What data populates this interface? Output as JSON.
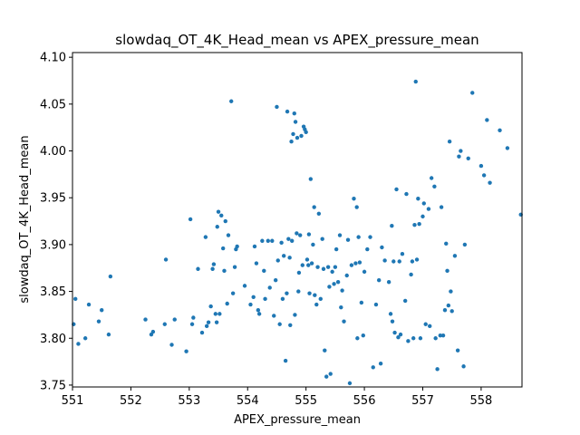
{
  "chart_data": {
    "type": "scatter",
    "title": "slowdaq_OT_4K_Head_mean vs APEX_pressure_mean",
    "xlabel": "APEX_pressure_mean",
    "ylabel": "slowdaq_OT_4K_Head_mean",
    "xlim": [
      551.0,
      558.7
    ],
    "ylim": [
      3.748,
      4.105
    ],
    "xticks": [
      "551",
      "552",
      "553",
      "554",
      "555",
      "556",
      "557",
      "558"
    ],
    "yticks": [
      "3.75",
      "3.80",
      "3.85",
      "3.90",
      "3.95",
      "4.00",
      "4.05",
      "4.10"
    ],
    "marker_color": "#1f77b4",
    "grid": false,
    "points": [
      [
        551.02,
        3.815
      ],
      [
        551.05,
        3.842
      ],
      [
        551.1,
        3.794
      ],
      [
        551.22,
        3.8
      ],
      [
        551.28,
        3.836
      ],
      [
        551.45,
        3.818
      ],
      [
        551.5,
        3.83
      ],
      [
        551.62,
        3.804
      ],
      [
        551.65,
        3.866
      ],
      [
        552.25,
        3.82
      ],
      [
        552.35,
        3.804
      ],
      [
        552.38,
        3.807
      ],
      [
        552.58,
        3.815
      ],
      [
        552.6,
        3.884
      ],
      [
        552.7,
        3.793
      ],
      [
        552.75,
        3.82
      ],
      [
        552.95,
        3.786
      ],
      [
        553.02,
        3.927
      ],
      [
        553.05,
        3.815
      ],
      [
        553.07,
        3.822
      ],
      [
        553.15,
        3.874
      ],
      [
        553.22,
        3.806
      ],
      [
        553.28,
        3.908
      ],
      [
        553.3,
        3.813
      ],
      [
        553.33,
        3.817
      ],
      [
        553.37,
        3.834
      ],
      [
        553.4,
        3.874
      ],
      [
        553.42,
        3.879
      ],
      [
        553.45,
        3.826
      ],
      [
        553.47,
        3.817
      ],
      [
        553.48,
        3.919
      ],
      [
        553.5,
        3.935
      ],
      [
        553.52,
        3.826
      ],
      [
        553.55,
        3.931
      ],
      [
        553.58,
        3.896
      ],
      [
        553.6,
        3.872
      ],
      [
        553.62,
        3.925
      ],
      [
        553.65,
        3.837
      ],
      [
        553.67,
        3.91
      ],
      [
        553.72,
        4.053
      ],
      [
        553.75,
        3.848
      ],
      [
        553.78,
        3.876
      ],
      [
        553.8,
        3.895
      ],
      [
        553.82,
        3.898
      ],
      [
        553.95,
        3.856
      ],
      [
        554.05,
        3.836
      ],
      [
        554.1,
        3.844
      ],
      [
        554.12,
        3.898
      ],
      [
        554.15,
        3.88
      ],
      [
        554.18,
        3.83
      ],
      [
        554.2,
        3.826
      ],
      [
        554.25,
        3.904
      ],
      [
        554.28,
        3.872
      ],
      [
        554.3,
        3.842
      ],
      [
        554.35,
        3.904
      ],
      [
        554.38,
        3.854
      ],
      [
        554.42,
        3.904
      ],
      [
        554.45,
        3.824
      ],
      [
        554.48,
        3.862
      ],
      [
        554.5,
        4.047
      ],
      [
        554.52,
        3.883
      ],
      [
        554.55,
        3.815
      ],
      [
        554.58,
        3.902
      ],
      [
        554.6,
        3.842
      ],
      [
        554.62,
        3.888
      ],
      [
        554.65,
        3.776
      ],
      [
        554.67,
        3.848
      ],
      [
        554.68,
        4.042
      ],
      [
        554.7,
        3.906
      ],
      [
        554.72,
        3.886
      ],
      [
        554.73,
        3.814
      ],
      [
        554.75,
        4.01
      ],
      [
        554.76,
        3.904
      ],
      [
        554.78,
        4.018
      ],
      [
        554.8,
        4.04
      ],
      [
        554.81,
        3.825
      ],
      [
        554.82,
        4.031
      ],
      [
        554.84,
        3.912
      ],
      [
        554.85,
        4.014
      ],
      [
        554.87,
        3.85
      ],
      [
        554.88,
        3.87
      ],
      [
        554.9,
        3.91
      ],
      [
        554.92,
        4.016
      ],
      [
        554.94,
        3.878
      ],
      [
        554.96,
        4.026
      ],
      [
        554.98,
        4.023
      ],
      [
        555.0,
        4.02
      ],
      [
        555.02,
        3.884
      ],
      [
        555.04,
        3.878
      ],
      [
        555.05,
        3.911
      ],
      [
        555.06,
        3.848
      ],
      [
        555.08,
        3.97
      ],
      [
        555.1,
        3.88
      ],
      [
        555.12,
        3.9
      ],
      [
        555.14,
        3.94
      ],
      [
        555.15,
        3.846
      ],
      [
        555.18,
        3.836
      ],
      [
        555.2,
        3.876
      ],
      [
        555.22,
        3.933
      ],
      [
        555.25,
        3.842
      ],
      [
        555.28,
        3.906
      ],
      [
        555.3,
        3.874
      ],
      [
        555.32,
        3.787
      ],
      [
        555.35,
        3.759
      ],
      [
        555.38,
        3.876
      ],
      [
        555.4,
        3.855
      ],
      [
        555.42,
        3.762
      ],
      [
        555.45,
        3.871
      ],
      [
        555.48,
        3.858
      ],
      [
        555.5,
        3.876
      ],
      [
        555.52,
        3.895
      ],
      [
        555.55,
        3.86
      ],
      [
        555.58,
        3.91
      ],
      [
        555.6,
        3.833
      ],
      [
        555.62,
        3.851
      ],
      [
        555.65,
        3.818
      ],
      [
        555.7,
        3.867
      ],
      [
        555.72,
        3.905
      ],
      [
        555.75,
        3.752
      ],
      [
        555.78,
        3.878
      ],
      [
        555.82,
        3.949
      ],
      [
        555.85,
        3.88
      ],
      [
        555.87,
        3.94
      ],
      [
        555.88,
        3.8
      ],
      [
        555.9,
        3.908
      ],
      [
        555.92,
        3.881
      ],
      [
        555.95,
        3.838
      ],
      [
        555.98,
        3.803
      ],
      [
        556.0,
        3.871
      ],
      [
        556.05,
        3.895
      ],
      [
        556.1,
        3.908
      ],
      [
        556.15,
        3.769
      ],
      [
        556.2,
        3.836
      ],
      [
        556.25,
        3.862
      ],
      [
        556.28,
        3.773
      ],
      [
        556.3,
        3.897
      ],
      [
        556.35,
        3.883
      ],
      [
        556.42,
        3.86
      ],
      [
        556.45,
        3.826
      ],
      [
        556.47,
        3.92
      ],
      [
        556.48,
        3.818
      ],
      [
        556.5,
        3.882
      ],
      [
        556.52,
        3.806
      ],
      [
        556.55,
        3.959
      ],
      [
        556.58,
        3.801
      ],
      [
        556.6,
        3.882
      ],
      [
        556.62,
        3.804
      ],
      [
        556.65,
        3.89
      ],
      [
        556.7,
        3.84
      ],
      [
        556.72,
        3.954
      ],
      [
        556.75,
        3.797
      ],
      [
        556.8,
        3.868
      ],
      [
        556.82,
        3.882
      ],
      [
        556.84,
        3.8
      ],
      [
        556.86,
        3.921
      ],
      [
        556.88,
        4.074
      ],
      [
        556.9,
        3.884
      ],
      [
        556.92,
        3.949
      ],
      [
        556.94,
        3.922
      ],
      [
        556.96,
        3.8
      ],
      [
        557.0,
        3.93
      ],
      [
        557.02,
        3.944
      ],
      [
        557.05,
        3.815
      ],
      [
        557.1,
        3.938
      ],
      [
        557.12,
        3.813
      ],
      [
        557.15,
        3.971
      ],
      [
        557.2,
        3.962
      ],
      [
        557.22,
        3.8
      ],
      [
        557.25,
        3.767
      ],
      [
        557.3,
        3.803
      ],
      [
        557.32,
        3.94
      ],
      [
        557.35,
        3.803
      ],
      [
        557.38,
        3.83
      ],
      [
        557.4,
        3.901
      ],
      [
        557.42,
        3.872
      ],
      [
        557.44,
        3.835
      ],
      [
        557.46,
        4.01
      ],
      [
        557.48,
        3.85
      ],
      [
        557.5,
        3.829
      ],
      [
        557.55,
        3.888
      ],
      [
        557.6,
        3.787
      ],
      [
        557.62,
        3.994
      ],
      [
        557.65,
        4.0
      ],
      [
        557.7,
        3.77
      ],
      [
        557.72,
        3.9
      ],
      [
        557.78,
        3.992
      ],
      [
        557.85,
        4.062
      ],
      [
        558.0,
        3.984
      ],
      [
        558.05,
        3.974
      ],
      [
        558.1,
        4.033
      ],
      [
        558.15,
        3.966
      ],
      [
        558.32,
        4.022
      ],
      [
        558.45,
        4.003
      ],
      [
        558.68,
        3.932
      ]
    ]
  }
}
